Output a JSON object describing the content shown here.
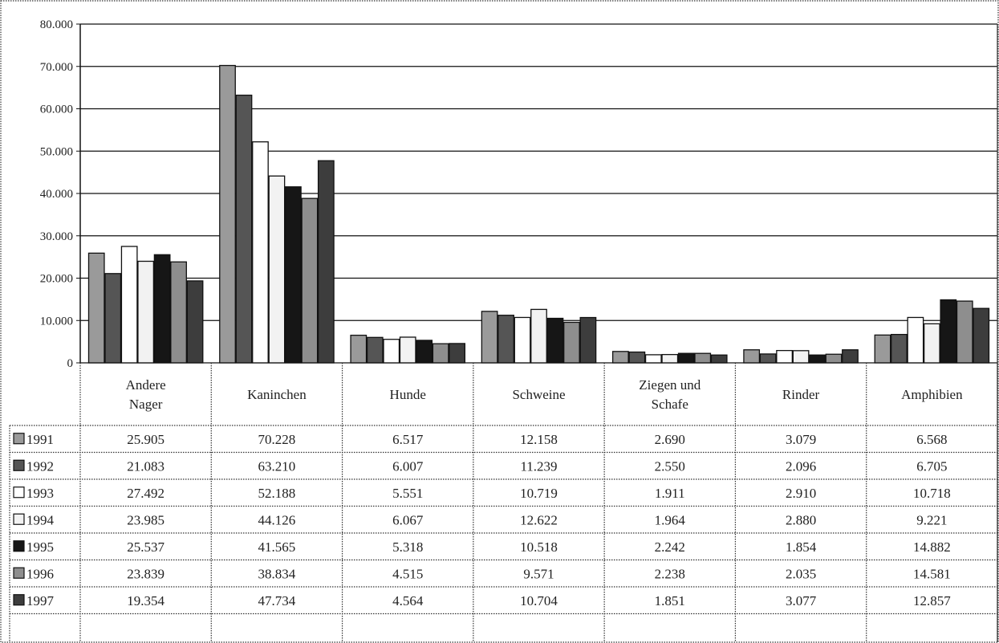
{
  "chart_data": {
    "type": "bar",
    "title": "",
    "xlabel": "",
    "ylabel": "",
    "ylim": [
      0,
      80000
    ],
    "y_ticks": [
      "0",
      "10.000",
      "20.000",
      "30.000",
      "40.000",
      "50.000",
      "60.000",
      "70.000",
      "80.000"
    ],
    "y_tick_values": [
      0,
      10000,
      20000,
      30000,
      40000,
      50000,
      60000,
      70000,
      80000
    ],
    "grid": true,
    "legend_placement": "left of data table",
    "categories": [
      [
        "Andere",
        "Nager"
      ],
      [
        "Kaninchen"
      ],
      [
        "Hunde"
      ],
      [
        "Schweine"
      ],
      [
        "Ziegen und",
        "Schafe"
      ],
      [
        "Rinder"
      ],
      [
        "Amphibien"
      ]
    ],
    "series": [
      {
        "name": "1991",
        "color": "#9a9a9a",
        "values": [
          25905,
          70228,
          6517,
          12158,
          2690,
          3079,
          6568
        ],
        "labels": [
          "25.905",
          "70.228",
          "6.517",
          "12.158",
          "2.690",
          "3.079",
          "6.568"
        ]
      },
      {
        "name": "1992",
        "color": "#555555",
        "values": [
          21083,
          63210,
          6007,
          11239,
          2550,
          2096,
          6705
        ],
        "labels": [
          "21.083",
          "63.210",
          "6.007",
          "11.239",
          "2.550",
          "2.096",
          "6.705"
        ]
      },
      {
        "name": "1993",
        "color": "#ffffff",
        "values": [
          27492,
          52188,
          5551,
          10719,
          1911,
          2910,
          10718
        ],
        "labels": [
          "27.492",
          "52.188",
          "5.551",
          "10.719",
          "1.911",
          "2.910",
          "10.718"
        ]
      },
      {
        "name": "1994",
        "color": "#f2f2f2",
        "values": [
          23985,
          44126,
          6067,
          12622,
          1964,
          2880,
          9221
        ],
        "labels": [
          "23.985",
          "44.126",
          "6.067",
          "12.622",
          "1.964",
          "2.880",
          "9.221"
        ]
      },
      {
        "name": "1995",
        "color": "#161616",
        "values": [
          25537,
          41565,
          5318,
          10518,
          2242,
          1854,
          14882
        ],
        "labels": [
          "25.537",
          "41.565",
          "5.318",
          "10.518",
          "2.242",
          "1.854",
          "14.882"
        ]
      },
      {
        "name": "1996",
        "color": "#8e8e8e",
        "values": [
          23839,
          38834,
          4515,
          9571,
          2238,
          2035,
          14581
        ],
        "labels": [
          "23.839",
          "38.834",
          "4.515",
          "9.571",
          "2.238",
          "2.035",
          "14.581"
        ]
      },
      {
        "name": "1997",
        "color": "#3d3d3d",
        "values": [
          19354,
          47734,
          4564,
          10704,
          1851,
          3077,
          12857
        ],
        "labels": [
          "19.354",
          "47.734",
          "4.564",
          "10.704",
          "1.851",
          "3.077",
          "12.857"
        ]
      }
    ]
  }
}
